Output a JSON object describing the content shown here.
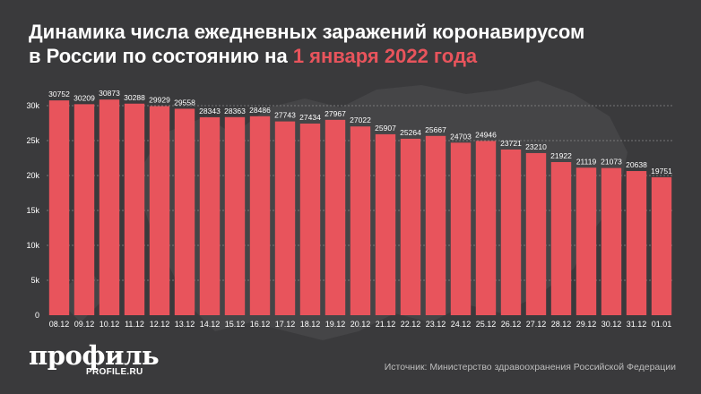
{
  "title": {
    "line1": "Динамика числа ежедневных заражений коронавирусом",
    "line2_prefix": "в России по состоянию на ",
    "line2_highlight": "1 января 2022 года"
  },
  "colors": {
    "background": "#3a3a3c",
    "bar": "#e8545c",
    "accent": "#e8545c",
    "text": "#ffffff"
  },
  "chart_data": {
    "type": "bar",
    "categories": [
      "08.12",
      "09.12",
      "10.12",
      "11.12",
      "12.12",
      "13.12",
      "14.12",
      "15.12",
      "16.12",
      "17.12",
      "18.12",
      "19.12",
      "20.12",
      "21.12",
      "22.12",
      "23.12",
      "24.12",
      "25.12",
      "26.12",
      "27.12",
      "28.12",
      "29.12",
      "30.12",
      "31.12",
      "01.01"
    ],
    "values": [
      30752,
      30209,
      30873,
      30288,
      29929,
      29558,
      28343,
      28363,
      28486,
      27743,
      27434,
      27967,
      27022,
      25907,
      25264,
      25667,
      24703,
      24946,
      23721,
      23210,
      21922,
      21119,
      21073,
      20638,
      19751
    ],
    "ylim": [
      0,
      30000
    ],
    "yticks": [
      0,
      5000,
      10000,
      15000,
      20000,
      25000,
      30000
    ],
    "ytick_labels": [
      "0",
      "5k",
      "10k",
      "15k",
      "20k",
      "25k",
      "30k"
    ],
    "grid": true
  },
  "branding": {
    "logo": "профиль",
    "logo_sub": "PROFILE.RU"
  },
  "source": "Источник: Министерство здравоохранения Российской Федерации"
}
